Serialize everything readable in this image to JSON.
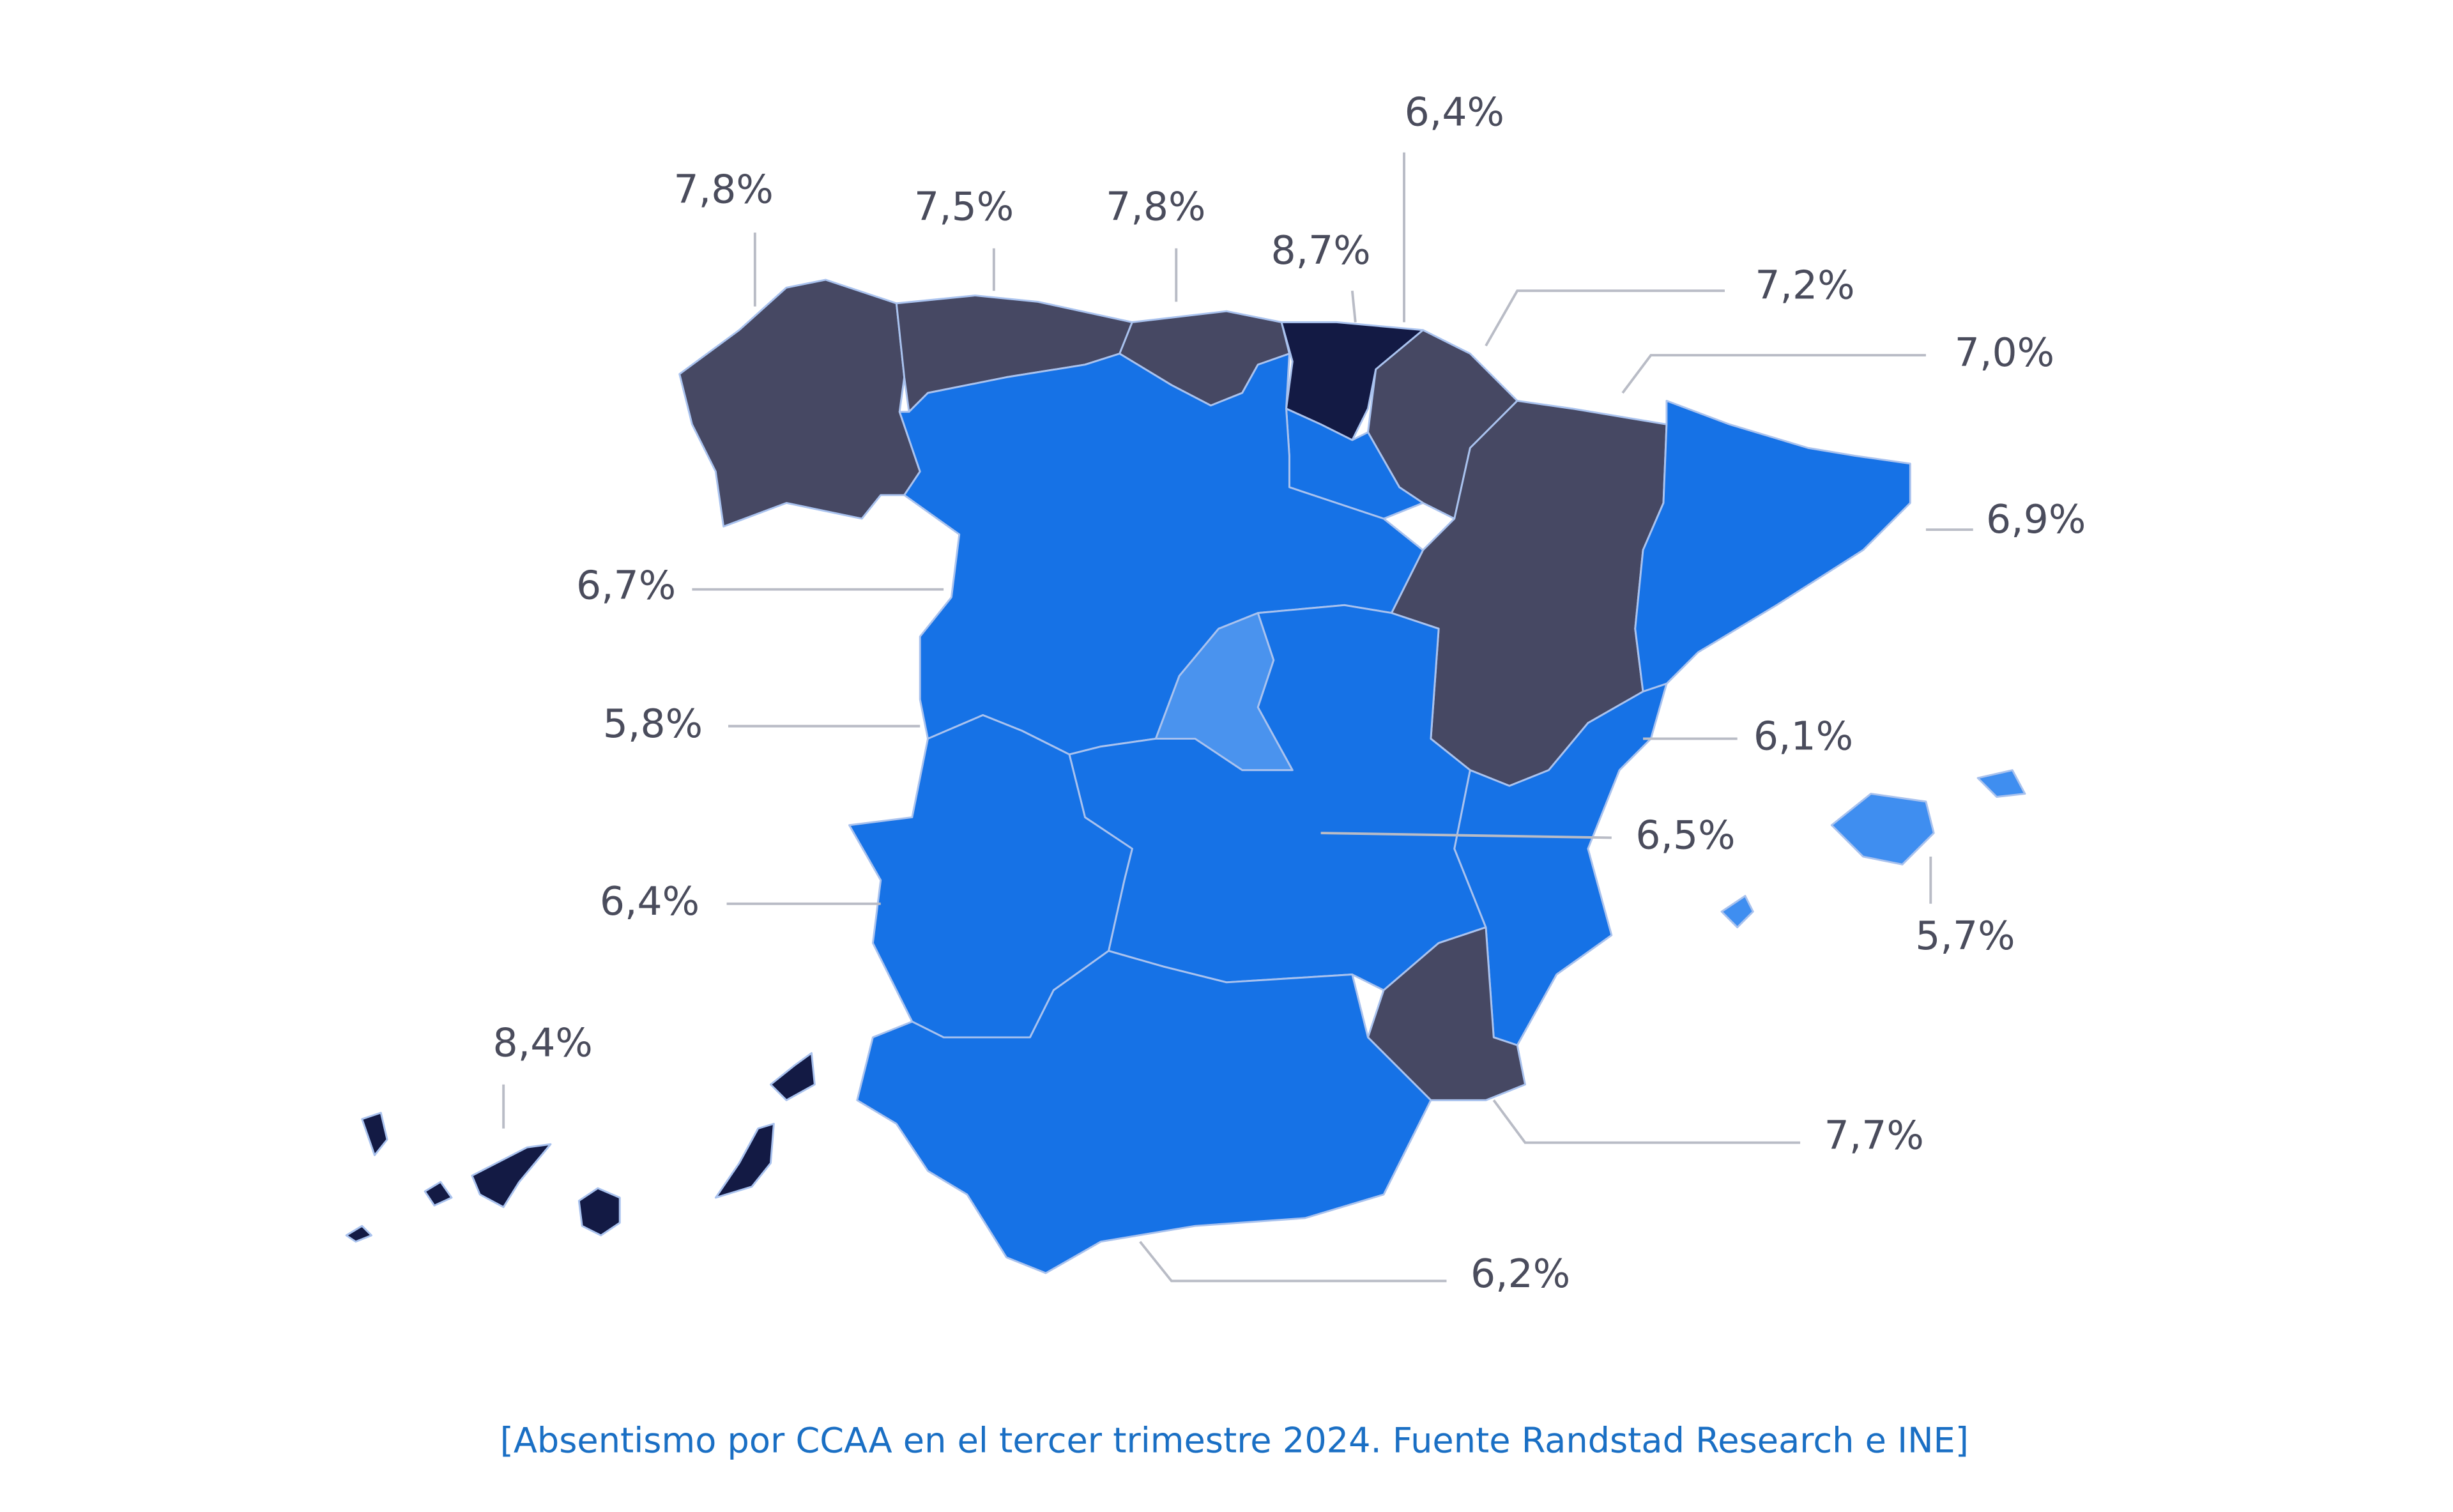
{
  "chart_data": {
    "type": "map",
    "values": [
      7.8,
      7.5,
      7.8,
      8.7,
      7.2,
      6.4,
      7.0,
      6.9,
      6.7,
      5.8,
      6.5,
      6.4,
      6.1,
      7.7,
      6.2,
      5.7,
      8.4
    ],
    "value_labels": [
      "7,8%",
      "7,5%",
      "7,8%",
      "8,7%",
      "7,2%",
      "6,4%",
      "7,0%",
      "6,9%",
      "6,7%",
      "5,8%",
      "6,5%",
      "6,4%",
      "6,1%",
      "7,7%",
      "6,2%",
      "5,7%",
      "8,4%"
    ],
    "colors": [
      "#464863",
      "#464863",
      "#464863",
      "#131a44",
      "#464863",
      "#1672e6",
      "#464863",
      "#1672e6",
      "#1672e6",
      "#4a93ee",
      "#1672e6",
      "#1672e6",
      "#1672e6",
      "#464863",
      "#1672e6",
      "#3f8ef0",
      "#131a44"
    ],
    "caption": "[Absentismo por CCAA en el tercer trimestre 2024. Fuente Randstad Research e INE]"
  }
}
